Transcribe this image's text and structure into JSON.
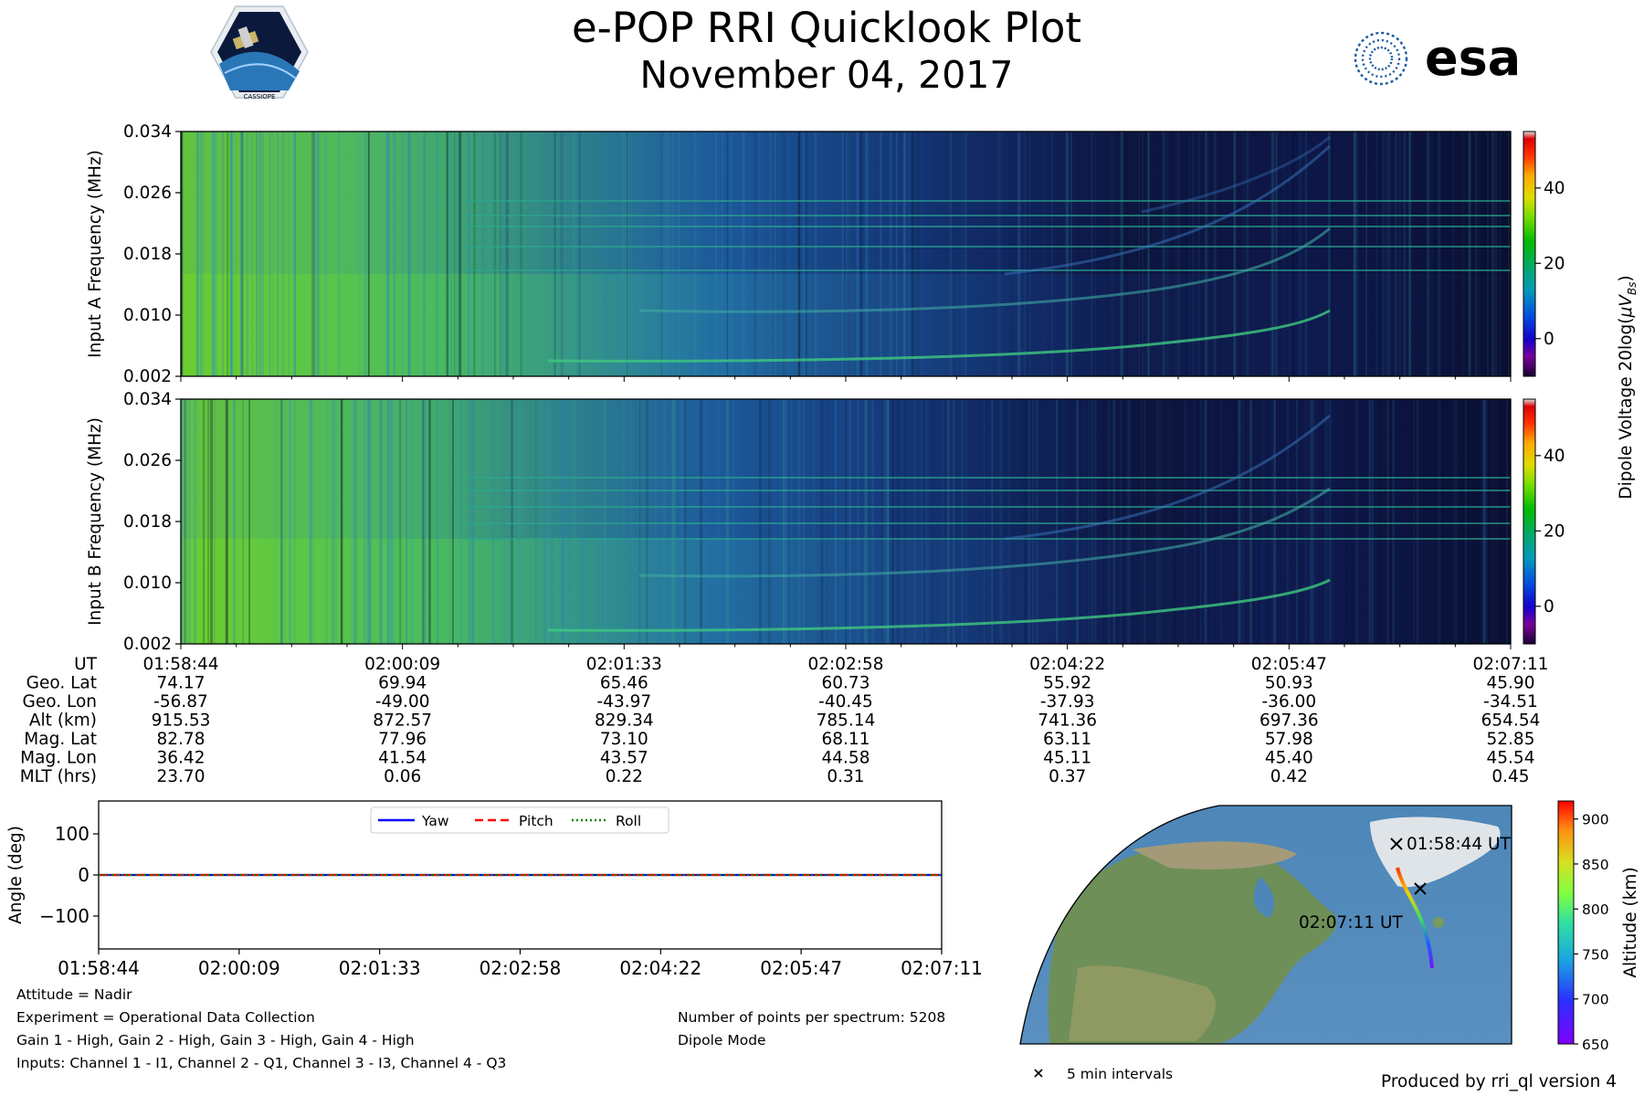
{
  "header": {
    "title": "e-POP RRI Quicklook Plot",
    "date": "November 04, 2017",
    "left_logo_text": "CASSIOPE",
    "right_logo_text": "esa"
  },
  "chart_data": [
    {
      "type": "heatmap",
      "panel": "input-a",
      "ylabel": "Input A Frequency (MHz)",
      "ylim": [
        0.002,
        0.034
      ],
      "yticks": [
        "0.002",
        "0.010",
        "0.018",
        "0.026",
        "0.034"
      ]
    },
    {
      "type": "heatmap",
      "panel": "input-b",
      "ylabel": "Input B Frequency (MHz)",
      "ylim": [
        0.002,
        0.034
      ],
      "yticks": [
        "0.002",
        "0.010",
        "0.018",
        "0.026",
        "0.034"
      ]
    },
    {
      "type": "colorbar",
      "panel": "dipole-voltage",
      "label_main": "Dipole Voltage 20log(",
      "label_mu": "μV",
      "label_sub": "Bs",
      "label_end": ")",
      "ticks": [
        "0",
        "20",
        "40"
      ],
      "range": [
        -10,
        55
      ]
    },
    {
      "type": "table",
      "panel": "ephemeris",
      "row_labels": [
        "UT",
        "Geo. Lat",
        "Geo. Lon",
        "Alt (km)",
        "Mag. Lat",
        "Mag. Lon",
        "MLT (hrs)"
      ],
      "columns": [
        [
          "01:58:44",
          "74.17",
          "-56.87",
          "915.53",
          "82.78",
          "36.42",
          "23.70"
        ],
        [
          "02:00:09",
          "69.94",
          "-49.00",
          "872.57",
          "77.96",
          "41.54",
          "0.06"
        ],
        [
          "02:01:33",
          "65.46",
          "-43.97",
          "829.34",
          "73.10",
          "43.57",
          "0.22"
        ],
        [
          "02:02:58",
          "60.73",
          "-40.45",
          "785.14",
          "68.11",
          "44.58",
          "0.31"
        ],
        [
          "02:04:22",
          "55.92",
          "-37.93",
          "741.36",
          "63.11",
          "45.11",
          "0.37"
        ],
        [
          "02:05:47",
          "50.93",
          "-36.00",
          "697.36",
          "57.98",
          "45.40",
          "0.42"
        ],
        [
          "02:07:11",
          "45.90",
          "-34.51",
          "654.54",
          "52.85",
          "45.54",
          "0.45"
        ]
      ]
    },
    {
      "type": "line",
      "panel": "attitude",
      "ylabel": "Angle (deg)",
      "ylim": [
        -180,
        180
      ],
      "yticks": [
        "−100",
        "0",
        "100"
      ],
      "ytick_values": [
        -100,
        0,
        100
      ],
      "x": [
        "01:58:44",
        "02:00:09",
        "02:01:33",
        "02:02:58",
        "02:04:22",
        "02:05:47",
        "02:07:11"
      ],
      "series": [
        {
          "name": "Yaw",
          "color": "#0000ff",
          "dash": "solid",
          "values": [
            0,
            0,
            0,
            0,
            0,
            0,
            0
          ]
        },
        {
          "name": "Pitch",
          "color": "#ff0000",
          "dash": "dashed",
          "values": [
            0,
            0,
            0,
            0,
            0,
            0,
            0
          ]
        },
        {
          "name": "Roll",
          "color": "#008000",
          "dash": "dotted",
          "values": [
            0,
            0,
            0,
            0,
            0,
            0,
            0
          ]
        }
      ],
      "legend_position": "top-center"
    },
    {
      "type": "map",
      "panel": "orbit-track",
      "start_label": "01:58:44 UT",
      "end_label": "02:07:11 UT",
      "interval_legend": "5 min intervals",
      "colorbar_label": "Altitude (km)",
      "colorbar_ticks": [
        "650",
        "700",
        "750",
        "800",
        "850",
        "900"
      ],
      "colorbar_range": [
        650,
        920
      ]
    }
  ],
  "footer": {
    "left": [
      "Attitude = Nadir",
      "Experiment = Operational Data Collection",
      "Gain 1 - High, Gain 2 - High, Gain 3 - High, Gain 4 - High",
      "Inputs: Channel 1 - I1, Channel 2 - Q1, Channel 3 - I3, Channel 4 - Q3"
    ],
    "right": [
      "Number of points per spectrum: 5208",
      "Dipole Mode"
    ],
    "produced_by": "Produced by rri_ql version 4"
  }
}
